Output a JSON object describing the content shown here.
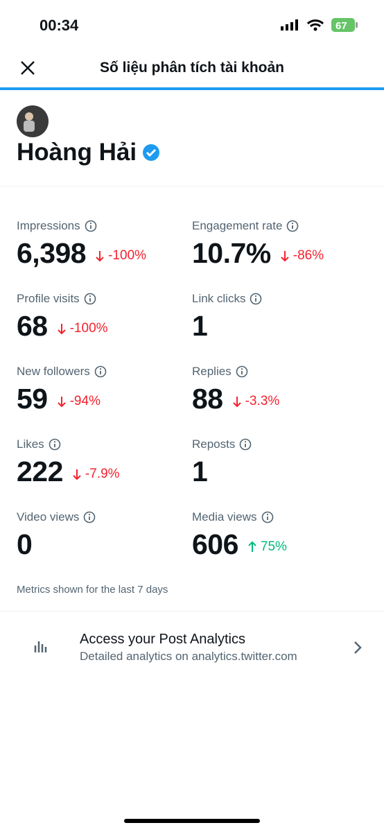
{
  "status_bar": {
    "time": "00:34",
    "battery": "67"
  },
  "header": {
    "title": "Số liệu phân tích tài khoản"
  },
  "profile": {
    "name": "Hoàng Hải"
  },
  "metrics": [
    {
      "label": "Impressions",
      "value": "6,398",
      "change": "-100%",
      "trend": "down"
    },
    {
      "label": "Engagement rate",
      "value": "10.7%",
      "change": "-86%",
      "trend": "down"
    },
    {
      "label": "Profile visits",
      "value": "68",
      "change": "-100%",
      "trend": "down"
    },
    {
      "label": "Link clicks",
      "value": "1"
    },
    {
      "label": "New followers",
      "value": "59",
      "change": "-94%",
      "trend": "down"
    },
    {
      "label": "Replies",
      "value": "88",
      "change": "-3.3%",
      "trend": "down"
    },
    {
      "label": "Likes",
      "value": "222",
      "change": "-7.9%",
      "trend": "down"
    },
    {
      "label": "Reposts",
      "value": "1"
    },
    {
      "label": "Video views",
      "value": "0"
    },
    {
      "label": "Media views",
      "value": "606",
      "change": "75%",
      "trend": "up"
    }
  ],
  "note": "Metrics shown for the last 7 days",
  "link": {
    "title": "Access your Post Analytics",
    "subtitle": "Detailed analytics on analytics.twitter.com"
  }
}
